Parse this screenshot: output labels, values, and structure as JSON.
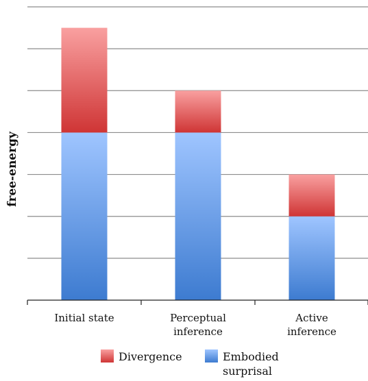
{
  "chart_data": {
    "type": "bar",
    "stacked": true,
    "title": "",
    "xlabel": "",
    "ylabel": "free-energy",
    "categories": [
      "Initial state",
      "Perceptual inference",
      "Active inference"
    ],
    "category_lines": [
      [
        "Initial state"
      ],
      [
        "Perceptual",
        "inference"
      ],
      [
        "Active",
        "inference"
      ]
    ],
    "series": [
      {
        "name": "Embodied surprisal",
        "legend_lines": [
          "Embodied",
          "surprisal"
        ],
        "values": [
          4,
          4,
          2
        ],
        "color_top": "#9fc5ff",
        "color_bottom": "#3d7bd0"
      },
      {
        "name": "Divergence",
        "legend_lines": [
          "Divergence"
        ],
        "values": [
          2.5,
          1,
          1
        ],
        "color_top": "#f9a0a0",
        "color_bottom": "#cf3535"
      }
    ],
    "ylim": [
      0,
      7
    ],
    "grid": true,
    "y_tick_labels_shown": false,
    "legend": "bottom",
    "colors": {
      "gridline": "#8c8c8c",
      "axis": "#222222"
    }
  }
}
